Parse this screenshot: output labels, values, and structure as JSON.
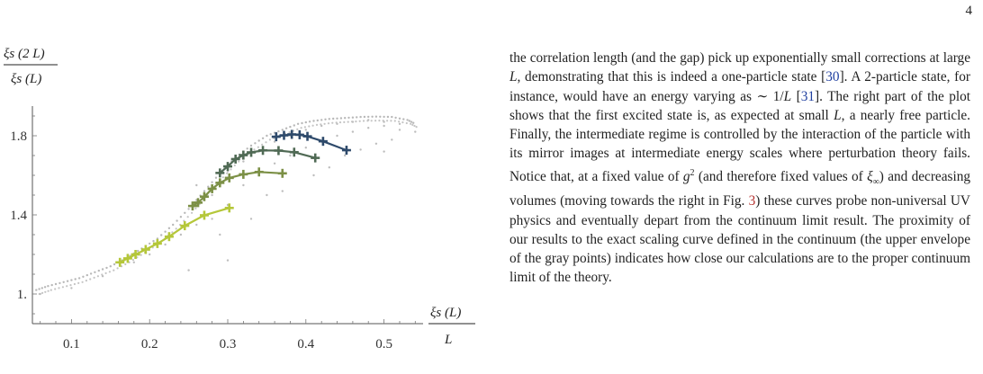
{
  "page_number": "4",
  "chart_data": {
    "type": "scatter",
    "ylabel_numerator": "ξs (2 L)",
    "ylabel_denominator": "ξs (L)",
    "xlabel_numerator": "ξs (L)",
    "xlabel_denominator": "L",
    "x_ticks": [
      0.1,
      0.2,
      0.3,
      0.4,
      0.5
    ],
    "x_tick_labels": [
      "0.1",
      "0.2",
      "0.3",
      "0.4",
      "0.5"
    ],
    "y_ticks": [
      1.0,
      1.4,
      1.8
    ],
    "y_tick_labels": [
      "1.",
      "1.4",
      "1.8"
    ],
    "xlim": [
      0.05,
      0.55
    ],
    "ylim": [
      0.85,
      1.95
    ],
    "grid": false,
    "gray_envelope": [
      [
        0.055,
        1.02
      ],
      [
        0.07,
        1.04
      ],
      [
        0.09,
        1.06
      ],
      [
        0.11,
        1.08
      ],
      [
        0.13,
        1.11
      ],
      [
        0.15,
        1.14
      ],
      [
        0.17,
        1.18
      ],
      [
        0.19,
        1.23
      ],
      [
        0.21,
        1.28
      ],
      [
        0.23,
        1.35
      ],
      [
        0.25,
        1.43
      ],
      [
        0.27,
        1.52
      ],
      [
        0.29,
        1.61
      ],
      [
        0.31,
        1.69
      ],
      [
        0.33,
        1.75
      ],
      [
        0.35,
        1.8
      ],
      [
        0.37,
        1.83
      ],
      [
        0.39,
        1.86
      ],
      [
        0.41,
        1.875
      ],
      [
        0.43,
        1.885
      ],
      [
        0.45,
        1.89
      ],
      [
        0.47,
        1.895
      ],
      [
        0.49,
        1.897
      ],
      [
        0.51,
        1.895
      ],
      [
        0.53,
        1.88
      ],
      [
        0.54,
        1.86
      ]
    ],
    "gray_scatter": [
      [
        0.06,
        1.0
      ],
      [
        0.1,
        1.03
      ],
      [
        0.14,
        1.09
      ],
      [
        0.18,
        1.16
      ],
      [
        0.2,
        1.2
      ],
      [
        0.22,
        1.25
      ],
      [
        0.24,
        1.3
      ],
      [
        0.26,
        1.35
      ],
      [
        0.26,
        1.55
      ],
      [
        0.28,
        1.5
      ],
      [
        0.28,
        1.38
      ],
      [
        0.3,
        1.45
      ],
      [
        0.3,
        1.62
      ],
      [
        0.32,
        1.55
      ],
      [
        0.32,
        1.67
      ],
      [
        0.34,
        1.6
      ],
      [
        0.34,
        1.72
      ],
      [
        0.36,
        1.66
      ],
      [
        0.36,
        1.77
      ],
      [
        0.38,
        1.7
      ],
      [
        0.38,
        1.8
      ],
      [
        0.4,
        1.74
      ],
      [
        0.4,
        1.83
      ],
      [
        0.42,
        1.77
      ],
      [
        0.42,
        1.85
      ],
      [
        0.44,
        1.8
      ],
      [
        0.44,
        1.86
      ],
      [
        0.46,
        1.82
      ],
      [
        0.46,
        1.87
      ],
      [
        0.48,
        1.84
      ],
      [
        0.48,
        1.88
      ],
      [
        0.5,
        1.85
      ],
      [
        0.5,
        1.87
      ],
      [
        0.52,
        1.86
      ],
      [
        0.52,
        1.83
      ],
      [
        0.54,
        1.82
      ],
      [
        0.35,
        1.5
      ],
      [
        0.37,
        1.52
      ],
      [
        0.41,
        1.6
      ],
      [
        0.43,
        1.64
      ],
      [
        0.45,
        1.7
      ],
      [
        0.47,
        1.73
      ],
      [
        0.49,
        1.76
      ],
      [
        0.51,
        1.78
      ],
      [
        0.29,
        1.3
      ],
      [
        0.33,
        1.38
      ],
      [
        0.25,
        1.12
      ],
      [
        0.3,
        1.17
      ],
      [
        0.5,
        1.72
      ]
    ],
    "series": [
      {
        "color": "#2e4a6b",
        "points": [
          [
            0.362,
            1.795
          ],
          [
            0.372,
            1.802
          ],
          [
            0.382,
            1.807
          ],
          [
            0.392,
            1.805
          ],
          [
            0.402,
            1.797
          ],
          [
            0.422,
            1.772
          ],
          [
            0.452,
            1.727
          ]
        ]
      },
      {
        "color": "#506a55",
        "points": [
          [
            0.29,
            1.612
          ],
          [
            0.3,
            1.645
          ],
          [
            0.31,
            1.682
          ],
          [
            0.32,
            1.702
          ],
          [
            0.33,
            1.716
          ],
          [
            0.345,
            1.726
          ],
          [
            0.365,
            1.725
          ],
          [
            0.385,
            1.717
          ],
          [
            0.412,
            1.688
          ]
        ]
      },
      {
        "color": "#7c9046",
        "points": [
          [
            0.255,
            1.445
          ],
          [
            0.262,
            1.462
          ],
          [
            0.27,
            1.492
          ],
          [
            0.28,
            1.532
          ],
          [
            0.29,
            1.562
          ],
          [
            0.302,
            1.587
          ],
          [
            0.32,
            1.605
          ],
          [
            0.34,
            1.617
          ],
          [
            0.37,
            1.61
          ]
        ]
      },
      {
        "color": "#b5c73a",
        "points": [
          [
            0.162,
            1.16
          ],
          [
            0.172,
            1.18
          ],
          [
            0.182,
            1.2
          ],
          [
            0.195,
            1.225
          ],
          [
            0.21,
            1.255
          ],
          [
            0.225,
            1.29
          ],
          [
            0.245,
            1.345
          ],
          [
            0.27,
            1.398
          ],
          [
            0.302,
            1.435
          ]
        ]
      }
    ]
  },
  "paragraph": [
    {
      "t": "the correlation length (and the gap) pick up exponentially small corrections at large "
    },
    {
      "t": "L",
      "k": "i"
    },
    {
      "t": ", demonstrating that this is indeed a one-particle state ["
    },
    {
      "t": "30",
      "k": "cite"
    },
    {
      "t": "]. A 2-particle state, for instance, would have an energy varying as ∼ 1/"
    },
    {
      "t": "L",
      "k": "i"
    },
    {
      "t": " ["
    },
    {
      "t": "31",
      "k": "cite"
    },
    {
      "t": "]. The right part of the plot shows that the first excited state is, as expected at small "
    },
    {
      "t": "L",
      "k": "i"
    },
    {
      "t": ", a nearly free particle. Finally, the intermediate regime is controlled by the interaction of the particle with its mirror images at intermediate energy scales where perturbation theory fails. Notice that, at a fixed value of "
    },
    {
      "t": "g",
      "k": "i"
    },
    {
      "t": "2",
      "k": "sup"
    },
    {
      "t": " (and therefore fixed values of "
    },
    {
      "t": "ξ",
      "k": "i"
    },
    {
      "t": "∞",
      "k": "sub"
    },
    {
      "t": ") and decreasing volumes (moving towards the right in Fig. "
    },
    {
      "t": "3",
      "k": "fig"
    },
    {
      "t": ") these curves probe non-universal UV physics and eventually depart from the continuum limit result. The proximity of our results to the exact scaling curve defined in the continuum (the upper envelope of the gray points) indicates how close our calculations are to the proper continuum limit of the theory."
    }
  ]
}
